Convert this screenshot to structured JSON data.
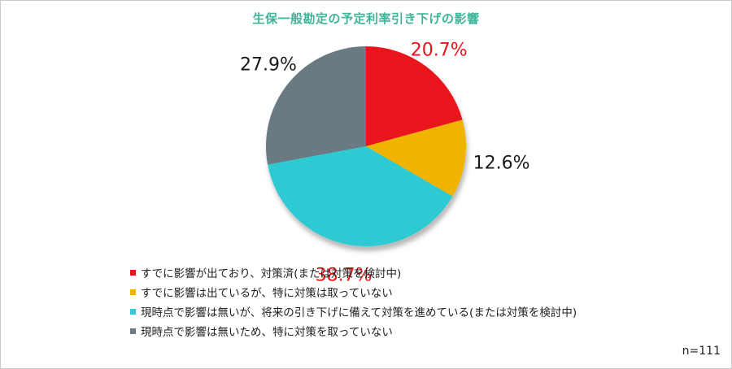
{
  "chart_data": {
    "type": "pie",
    "title": "生保一般勘定の予定利率引き下げの影響",
    "note": "n=111",
    "slices": [
      {
        "label": "すでに影響が出ており、対策済(または対策を検討中)",
        "value": 20.7,
        "display": "20.7%",
        "color": "#e8141b",
        "label_color": "#e8141b"
      },
      {
        "label": "すでに影響は出ているが、特に対策は取っていない",
        "value": 12.6,
        "display": "12.6%",
        "color": "#f0b400",
        "label_color": "#1a1a1a"
      },
      {
        "label": "現時点で影響は無いが、将来の引き下げに備えて対策を進めている(または対策を検討中)",
        "value": 38.7,
        "display": "38.7%",
        "color": "#2fcad3",
        "label_color": "#e8141b"
      },
      {
        "label": "現時点で影響は無いため、特に対策を取っていない",
        "value": 27.9,
        "display": "27.9%",
        "color": "#6b7a82",
        "label_color": "#1a1a1a"
      }
    ]
  }
}
